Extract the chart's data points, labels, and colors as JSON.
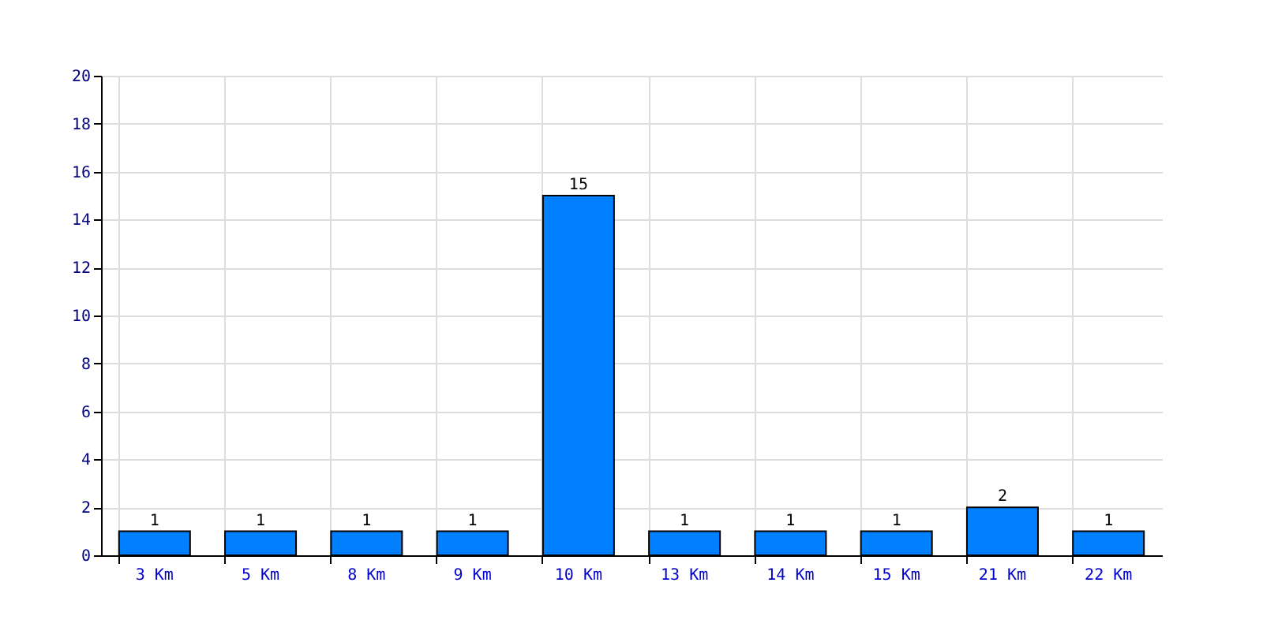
{
  "chart_data": {
    "type": "bar",
    "categories": [
      "3 Km",
      "5 Km",
      "8 Km",
      "9 Km",
      "10 Km",
      "13 Km",
      "14 Km",
      "15 Km",
      "21 Km",
      "22 Km"
    ],
    "values": [
      1,
      1,
      1,
      1,
      15,
      1,
      1,
      1,
      2,
      1
    ],
    "color": "#0080ff",
    "ylim": [
      0,
      20
    ],
    "yticks": [
      0,
      2,
      4,
      6,
      8,
      10,
      12,
      14,
      16,
      18,
      20
    ],
    "grid": true,
    "data_labels": true
  }
}
